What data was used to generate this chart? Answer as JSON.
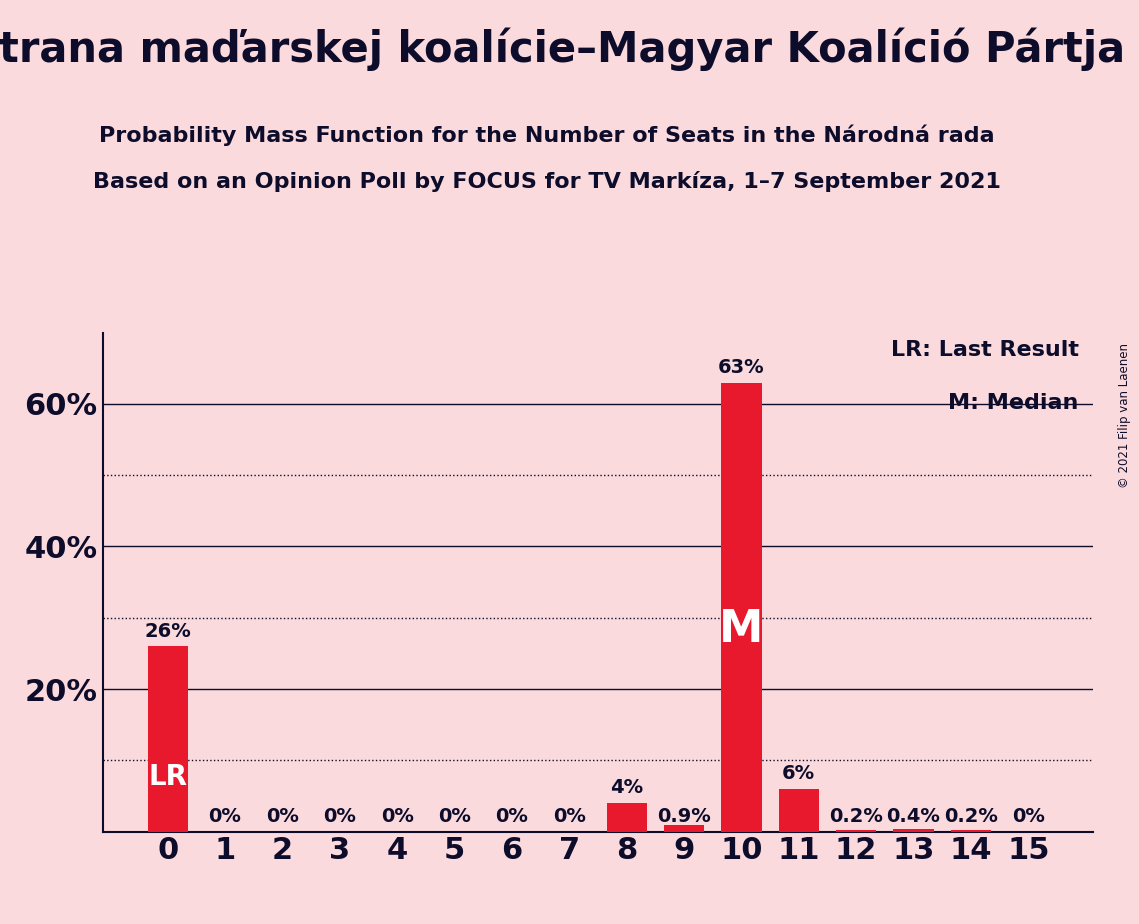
{
  "title": "Strana maďarskej koalície–Magyar Koalíció Pártja",
  "subtitle1": "Probability Mass Function for the Number of Seats in the Národná rada",
  "subtitle2": "Based on an Opinion Poll by FOCUS for TV Markíza, 1–7 September 2021",
  "copyright": "© 2021 Filip van Laenen",
  "categories": [
    0,
    1,
    2,
    3,
    4,
    5,
    6,
    7,
    8,
    9,
    10,
    11,
    12,
    13,
    14,
    15
  ],
  "values": [
    26,
    0,
    0,
    0,
    0,
    0,
    0,
    0,
    4,
    0.9,
    63,
    6,
    0.2,
    0.4,
    0.2,
    0
  ],
  "bar_color": "#E8192C",
  "background_color": "#FADADD",
  "text_color": "#0D0D2B",
  "bar_labels": [
    "26%",
    "0%",
    "0%",
    "0%",
    "0%",
    "0%",
    "0%",
    "0%",
    "4%",
    "0.9%",
    "63%",
    "6%",
    "0.2%",
    "0.4%",
    "0.2%",
    "0%"
  ],
  "ylim": [
    0,
    70
  ],
  "yticks": [
    0,
    20,
    40,
    60
  ],
  "ytick_labels": [
    "",
    "20%",
    "40%",
    "60%"
  ],
  "solid_lines": [
    20,
    40,
    60
  ],
  "dotted_lines": [
    10,
    30,
    50
  ],
  "legend_line1": "LR: Last Result",
  "legend_line2": "M: Median",
  "lr_bar": 0,
  "median_bar": 10,
  "title_fontsize": 30,
  "subtitle_fontsize": 16,
  "axis_fontsize": 22,
  "bar_label_fontsize": 14,
  "lr_label_fontsize": 20,
  "m_label_fontsize": 32
}
